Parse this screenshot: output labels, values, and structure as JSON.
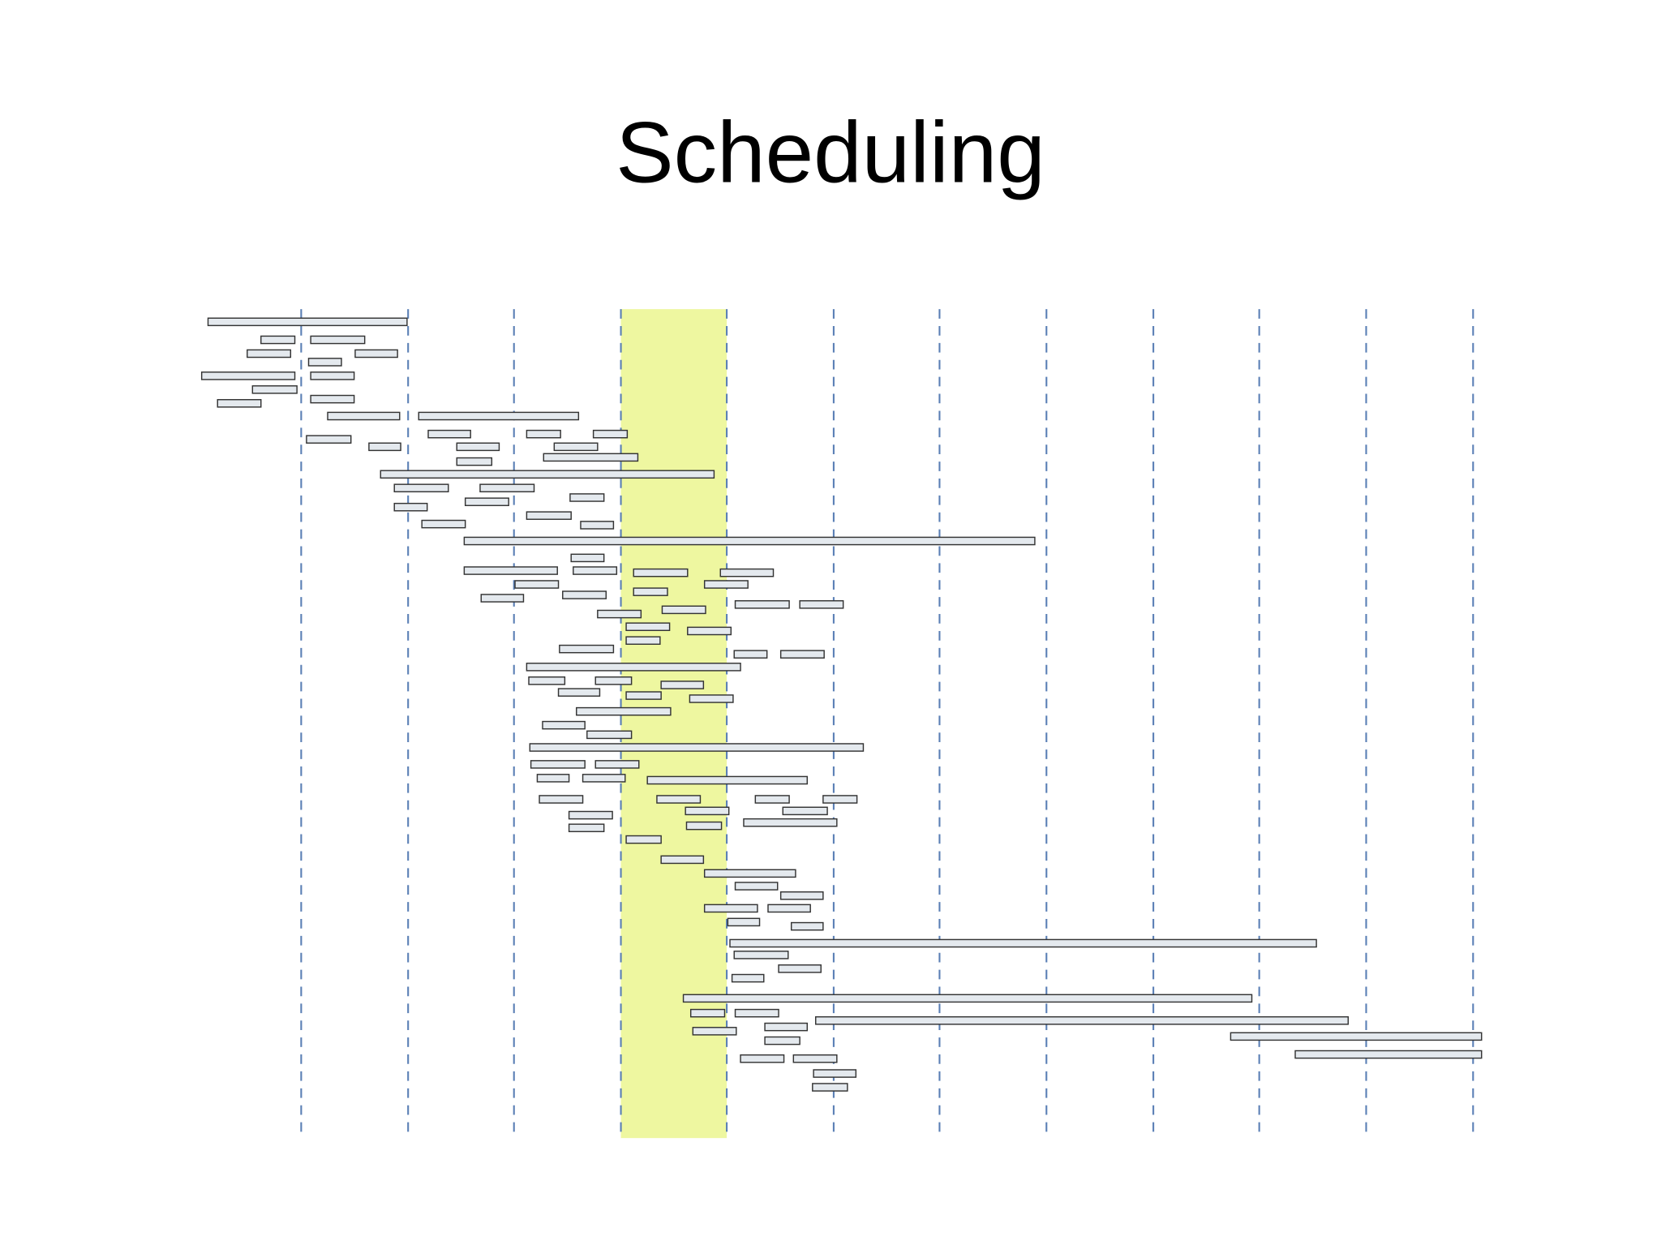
{
  "title": "Scheduling"
}
